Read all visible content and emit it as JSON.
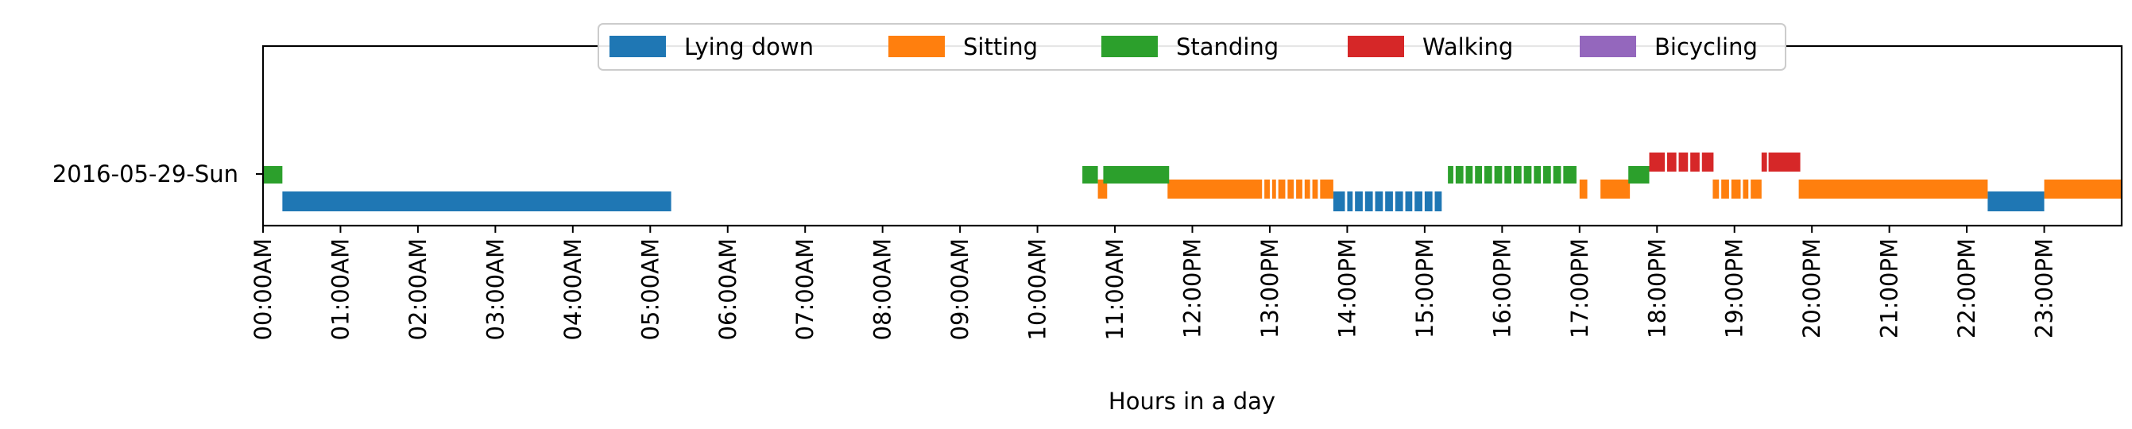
{
  "chart_data": {
    "type": "timeline",
    "xlabel": "Hours in a day",
    "x_unit": "hours",
    "xlim": [
      0,
      24
    ],
    "x_ticks": [
      "00:00AM",
      "01:00AM",
      "02:00AM",
      "03:00AM",
      "04:00AM",
      "05:00AM",
      "06:00AM",
      "07:00AM",
      "08:00AM",
      "09:00AM",
      "10:00AM",
      "11:00AM",
      "12:00PM",
      "13:00PM",
      "14:00PM",
      "15:00PM",
      "16:00PM",
      "17:00PM",
      "18:00PM",
      "19:00PM",
      "20:00PM",
      "21:00PM",
      "22:00PM",
      "23:00PM"
    ],
    "rows": [
      "2016-05-29-Sun"
    ],
    "legend_position": "top-center",
    "grid": false,
    "series": [
      {
        "name": "Lying down",
        "color": "#1f77b4",
        "intervals": [
          [
            0.25,
            5.27
          ],
          [
            13.82,
            13.97
          ],
          [
            14.0,
            14.07
          ],
          [
            14.1,
            14.2
          ],
          [
            14.23,
            14.33
          ],
          [
            14.36,
            14.46
          ],
          [
            14.49,
            14.59
          ],
          [
            14.62,
            14.72
          ],
          [
            14.75,
            14.84
          ],
          [
            14.87,
            14.97
          ],
          [
            15.0,
            15.1
          ],
          [
            15.13,
            15.22
          ],
          [
            22.27,
            23.0
          ]
        ]
      },
      {
        "name": "Sitting",
        "color": "#ff7f0e",
        "intervals": [
          [
            10.78,
            10.9
          ],
          [
            11.68,
            12.9
          ],
          [
            12.93,
            13.0
          ],
          [
            13.03,
            13.08
          ],
          [
            13.11,
            13.2
          ],
          [
            13.23,
            13.31
          ],
          [
            13.34,
            13.42
          ],
          [
            13.45,
            13.52
          ],
          [
            13.55,
            13.62
          ],
          [
            13.65,
            13.82
          ],
          [
            17.0,
            17.1
          ],
          [
            17.27,
            17.65
          ],
          [
            18.72,
            18.8
          ],
          [
            18.83,
            18.93
          ],
          [
            18.96,
            19.08
          ],
          [
            19.11,
            19.18
          ],
          [
            19.21,
            19.35
          ],
          [
            19.83,
            22.27
          ],
          [
            23.0,
            24.0
          ]
        ]
      },
      {
        "name": "Standing",
        "color": "#2ca02c",
        "intervals": [
          [
            0.0,
            0.25
          ],
          [
            10.58,
            10.78
          ],
          [
            10.85,
            11.7
          ],
          [
            15.3,
            15.37
          ],
          [
            15.4,
            15.5
          ],
          [
            15.53,
            15.62
          ],
          [
            15.65,
            15.74
          ],
          [
            15.77,
            15.87
          ],
          [
            15.9,
            16.0
          ],
          [
            16.03,
            16.12
          ],
          [
            16.15,
            16.25
          ],
          [
            16.28,
            16.38
          ],
          [
            16.41,
            16.5
          ],
          [
            16.53,
            16.63
          ],
          [
            16.66,
            16.76
          ],
          [
            16.79,
            16.96
          ],
          [
            17.63,
            17.9
          ]
        ]
      },
      {
        "name": "Walking",
        "color": "#d62728",
        "intervals": [
          [
            17.9,
            18.1
          ],
          [
            18.13,
            18.25
          ],
          [
            18.28,
            18.4
          ],
          [
            18.43,
            18.55
          ],
          [
            18.58,
            18.73
          ],
          [
            19.35,
            19.42
          ],
          [
            19.44,
            19.85
          ]
        ]
      },
      {
        "name": "Bicycling",
        "color": "#9467bd",
        "intervals": []
      }
    ]
  }
}
